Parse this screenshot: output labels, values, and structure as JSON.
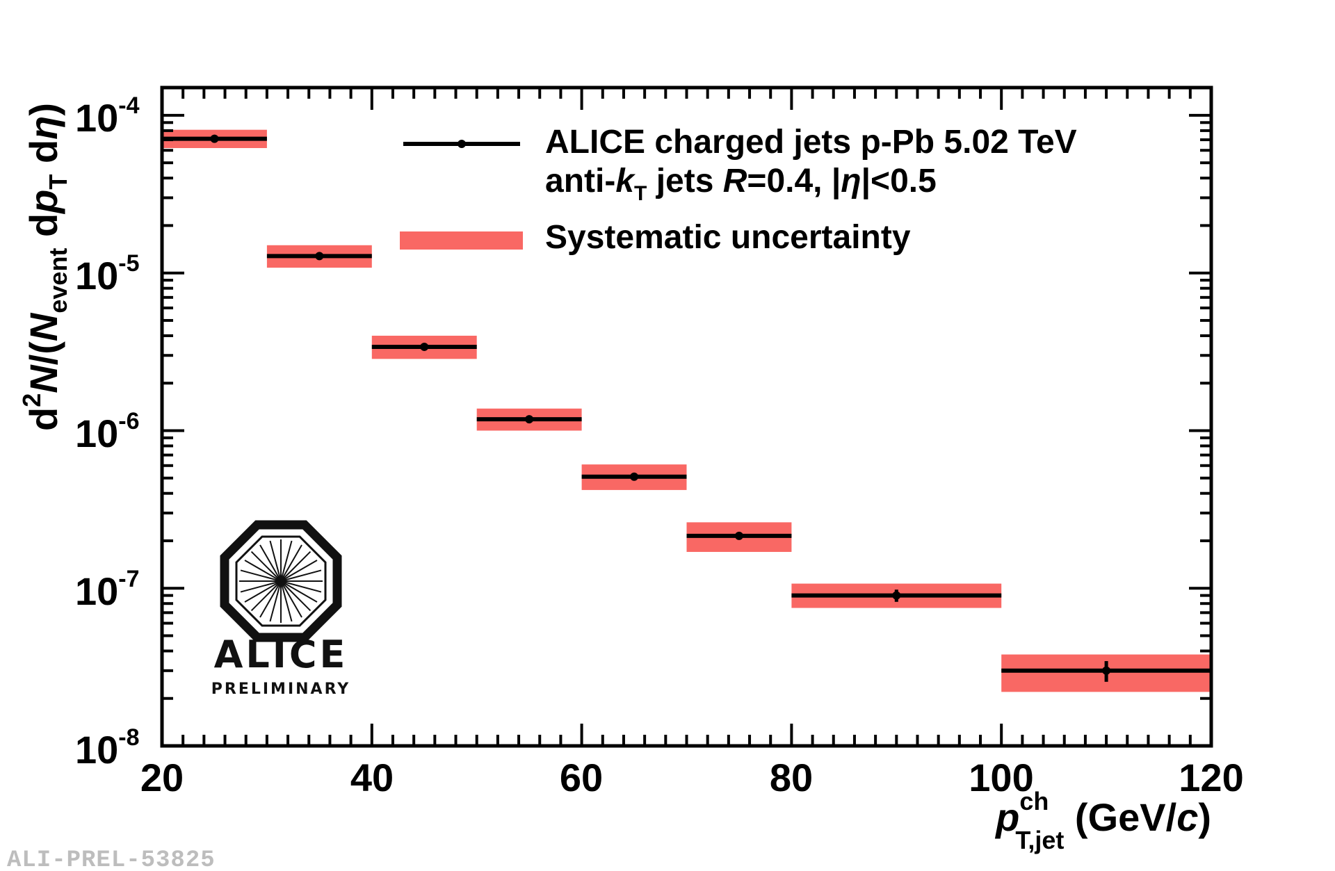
{
  "chart_data": {
    "type": "scatter",
    "xscale": "linear",
    "yscale": "log",
    "xlim": [
      20,
      120
    ],
    "ylim": [
      1e-08,
      0.00015
    ],
    "grid": false,
    "x_ticks": [
      20,
      40,
      60,
      80,
      100,
      120
    ],
    "x_tick_labels": [
      "20",
      "40",
      "60",
      "80",
      "100",
      "120"
    ],
    "y_ticks": [
      1e-08,
      1e-07,
      1e-06,
      1e-05,
      0.0001
    ],
    "y_tick_labels": [
      {
        "base": "10",
        "exp": "-8"
      },
      {
        "base": "10",
        "exp": "-7"
      },
      {
        "base": "10",
        "exp": "-6"
      },
      {
        "base": "10",
        "exp": "-5"
      },
      {
        "base": "10",
        "exp": "-4"
      }
    ],
    "xlabel": {
      "p": "p",
      "sup": "ch",
      "sub": "T,jet",
      "unit_open": " (GeV/",
      "c": "c",
      "unit_close": ")"
    },
    "ylabel": {
      "d": "d",
      "two": "2",
      "N": "N",
      "slash": "/(",
      "Nev": "N",
      "event": "event",
      "dp": " d",
      "p": "p",
      "T": "T",
      "deta": " d",
      "eta": "η",
      "close": ")"
    },
    "series": [
      {
        "name": "ALICE charged jets p-Pb 5.02 TeV",
        "color": "#000000",
        "points": [
          {
            "x": 25,
            "xlow": 20,
            "xhigh": 30,
            "y": 7.1e-05,
            "stat_err": 3e-06,
            "sys_low": 6.2e-05,
            "sys_high": 8.1e-05
          },
          {
            "x": 35,
            "xlow": 30,
            "xhigh": 40,
            "y": 1.28e-05,
            "stat_err": 4e-07,
            "sys_low": 1.08e-05,
            "sys_high": 1.5e-05
          },
          {
            "x": 45,
            "xlow": 40,
            "xhigh": 50,
            "y": 3.4e-06,
            "stat_err": 8e-08,
            "sys_low": 2.85e-06,
            "sys_high": 4e-06
          },
          {
            "x": 55,
            "xlow": 50,
            "xhigh": 60,
            "y": 1.18e-06,
            "stat_err": 3e-08,
            "sys_low": 1e-06,
            "sys_high": 1.38e-06
          },
          {
            "x": 65,
            "xlow": 60,
            "xhigh": 70,
            "y": 5.1e-07,
            "stat_err": 1.5e-08,
            "sys_low": 4.2e-07,
            "sys_high": 6.1e-07
          },
          {
            "x": 75,
            "xlow": 70,
            "xhigh": 80,
            "y": 2.15e-07,
            "stat_err": 1e-08,
            "sys_low": 1.7e-07,
            "sys_high": 2.62e-07
          },
          {
            "x": 90,
            "xlow": 80,
            "xhigh": 100,
            "y": 9e-08,
            "stat_err": 8e-09,
            "sys_low": 7.5e-08,
            "sys_high": 1.07e-07
          },
          {
            "x": 110,
            "xlow": 100,
            "xhigh": 120,
            "y": 3e-08,
            "stat_err": 4.5e-09,
            "sys_low": 2.2e-08,
            "sys_high": 3.8e-08
          }
        ]
      }
    ],
    "systematic_color": "#f96864",
    "legend": {
      "placement": "top-right",
      "line1": "ALICE charged jets p-Pb 5.02 TeV",
      "line2": {
        "pre": "anti-",
        "k": "k",
        "T": "T",
        "mid": " jets  ",
        "R": "R",
        "rest": "=0.4, |",
        "eta": "η",
        "end": "|<0.5"
      },
      "sys_label": "Systematic uncertainty"
    }
  },
  "logo": {
    "name": "ALICE",
    "sub": "PRELIMINARY"
  },
  "watermark": "ALI-PREL-53825"
}
